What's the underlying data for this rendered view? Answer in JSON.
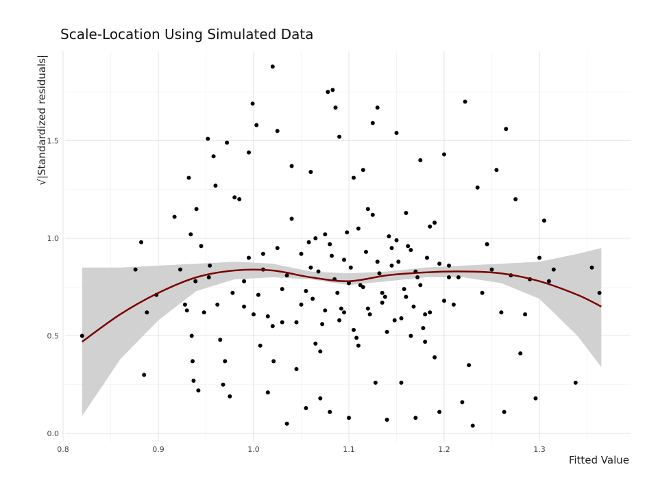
{
  "chart_data": {
    "type": "scatter",
    "title": "Scale-Location Using Simulated Data",
    "xlabel": "Fitted Value",
    "ylabel": "√|Standardized residuals|",
    "xlim": [
      0.8,
      1.32
    ],
    "ylim": [
      0.0,
      1.85
    ],
    "x_ticks": [
      0.8,
      0.9,
      1.0,
      1.1,
      1.2,
      1.3
    ],
    "x_tick_labels": [
      "0.8",
      "0.9",
      "1.0",
      "1.1",
      "1.2",
      "1.3"
    ],
    "y_ticks": [
      0.0,
      0.5,
      1.0,
      1.5
    ],
    "y_tick_labels": [
      "0.0",
      "0.5",
      "1.0",
      "1.5"
    ],
    "grid": true,
    "point_color": "#000000",
    "smooth_color": "#7a0000",
    "band_color": "#cccccc",
    "smooth": {
      "x": [
        0.82,
        0.86,
        0.9,
        0.94,
        0.98,
        1.02,
        1.06,
        1.1,
        1.14,
        1.18,
        1.22,
        1.26,
        1.3,
        1.34,
        1.365
      ],
      "y": [
        0.47,
        0.61,
        0.72,
        0.8,
        0.835,
        0.835,
        0.8,
        0.78,
        0.81,
        0.825,
        0.83,
        0.82,
        0.78,
        0.71,
        0.65
      ],
      "lower": [
        0.09,
        0.38,
        0.58,
        0.73,
        0.79,
        0.8,
        0.79,
        0.76,
        0.78,
        0.8,
        0.8,
        0.77,
        0.69,
        0.5,
        0.34
      ],
      "upper": [
        0.85,
        0.85,
        0.86,
        0.87,
        0.88,
        0.87,
        0.83,
        0.82,
        0.83,
        0.85,
        0.86,
        0.87,
        0.88,
        0.92,
        0.95
      ]
    },
    "points": {
      "x": [
        0.82,
        0.876,
        0.882,
        0.885,
        0.888,
        0.898,
        0.917,
        0.923,
        0.928,
        0.93,
        0.932,
        0.934,
        0.935,
        0.936,
        0.937,
        0.939,
        0.94,
        0.942,
        0.945,
        0.948,
        0.952,
        0.953,
        0.954,
        0.958,
        0.96,
        0.962,
        0.965,
        0.968,
        0.97,
        0.972,
        0.975,
        0.978,
        0.98,
        0.985,
        0.99,
        0.995,
        0.999,
        1.003,
        1.007,
        1.01,
        1.015,
        1.02,
        1.021,
        1.025,
        1.03,
        1.035,
        1.04,
        1.045,
        1.05,
        1.055,
        1.06,
        1.065,
        1.07,
        1.075,
        1.078,
        1.08,
        1.083,
        1.086,
        1.09,
        1.095,
        1.1,
        1.105,
        1.11,
        1.115,
        1.12,
        1.125,
        1.128,
        1.13,
        1.135,
        1.14,
        1.145,
        1.15,
        1.155,
        1.16,
        1.165,
        1.17,
        1.175,
        1.18,
        1.185,
        1.19,
        1.195,
        1.2,
        1.205,
        1.21,
        1.215,
        1.219,
        1.222,
        1.226,
        1.23,
        1.235,
        1.24,
        1.245,
        1.25,
        1.255,
        1.26,
        1.263,
        1.265,
        1.27,
        1.275,
        1.28,
        1.285,
        1.29,
        1.296,
        1.3,
        1.305,
        1.31,
        1.315,
        1.338,
        1.355,
        1.363,
        0.99,
        1.0,
        1.01,
        1.02,
        1.03,
        1.04,
        1.05,
        1.06,
        1.07,
        1.08,
        1.09,
        1.1,
        1.11,
        1.12,
        1.13,
        1.14,
        1.15,
        1.16,
        1.17,
        1.18,
        1.19,
        1.2,
        0.995,
        1.005,
        1.015,
        1.025,
        1.035,
        1.045,
        1.055,
        1.065,
        1.075,
        1.085,
        1.095,
        1.105,
        1.115,
        1.125,
        1.135,
        1.145,
        1.155,
        1.165,
        1.175,
        1.185,
        1.195,
        1.205,
        1.058,
        1.062,
        1.068,
        1.072,
        1.082,
        1.088,
        1.092,
        1.098,
        1.102,
        1.108,
        1.112,
        1.118,
        1.122,
        1.132,
        1.138,
        1.142,
        1.148,
        1.152,
        1.158,
        1.162,
        1.168,
        1.172,
        1.178,
        1.182
      ],
      "y": [
        0.5,
        0.84,
        0.98,
        0.3,
        0.62,
        0.71,
        1.11,
        0.84,
        0.66,
        0.63,
        1.31,
        1.02,
        0.5,
        0.37,
        0.27,
        0.78,
        1.15,
        0.22,
        0.96,
        0.62,
        1.51,
        0.8,
        0.86,
        1.42,
        1.27,
        0.66,
        0.48,
        0.25,
        0.37,
        1.49,
        0.19,
        0.72,
        1.21,
        1.2,
        0.65,
        1.44,
        1.69,
        1.58,
        0.45,
        0.84,
        0.21,
        1.88,
        0.37,
        1.55,
        0.57,
        0.05,
        1.37,
        0.33,
        0.92,
        0.13,
        1.34,
        0.46,
        0.18,
        1.02,
        1.75,
        0.11,
        1.76,
        1.67,
        1.52,
        0.62,
        0.08,
        1.31,
        0.45,
        1.35,
        1.15,
        1.59,
        0.26,
        1.67,
        0.72,
        0.07,
        0.95,
        1.54,
        0.26,
        1.13,
        0.5,
        0.08,
        1.4,
        0.61,
        1.06,
        0.39,
        0.11,
        1.43,
        0.86,
        0.66,
        0.8,
        0.16,
        1.7,
        0.35,
        0.04,
        1.26,
        0.72,
        0.97,
        0.84,
        1.35,
        0.62,
        0.11,
        1.56,
        0.81,
        1.2,
        0.41,
        0.61,
        0.79,
        0.18,
        0.9,
        1.09,
        0.78,
        0.84,
        0.26,
        0.85,
        0.72,
        0.78,
        0.61,
        0.92,
        0.55,
        0.74,
        1.1,
        0.66,
        0.85,
        0.42,
        0.97,
        0.58,
        0.77,
        1.05,
        0.64,
        0.88,
        0.52,
        0.99,
        0.7,
        0.83,
        0.47,
        1.08,
        0.68,
        0.9,
        0.71,
        0.6,
        0.95,
        0.81,
        0.57,
        0.73,
        1.0,
        0.63,
        0.79,
        0.89,
        0.53,
        0.75,
        1.12,
        0.67,
        0.86,
        0.59,
        0.94,
        0.76,
        0.62,
        0.87,
        0.8,
        0.98,
        0.69,
        0.83,
        0.56,
        0.91,
        0.72,
        0.64,
        1.03,
        0.85,
        0.49,
        0.76,
        0.93,
        0.61,
        0.82,
        0.7,
        1.01,
        0.58,
        0.88,
        0.74,
        0.96,
        0.65,
        0.8,
        0.54,
        0.9
      ]
    }
  }
}
